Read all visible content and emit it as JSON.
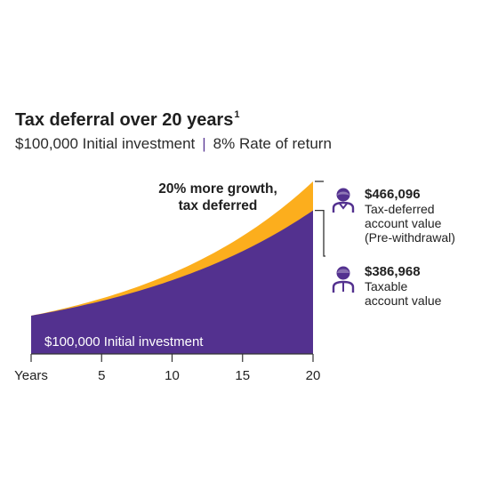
{
  "header": {
    "title": "Tax deferral over 20 years",
    "footnote_marker": "1",
    "subtitle_left": "$100,000 Initial investment",
    "subtitle_sep": "|",
    "subtitle_right": "8% Rate of return"
  },
  "chart_data": {
    "type": "area",
    "title": "Tax deferral over 20 years",
    "subtitle": "$100,000 Initial investment | 8% Rate of return",
    "xlabel": "Years",
    "x": [
      0,
      5,
      10,
      15,
      20
    ],
    "x_ticks": [
      "Years",
      "5",
      "10",
      "15",
      "20"
    ],
    "xlim": [
      0,
      20
    ],
    "ylim": [
      0,
      466096
    ],
    "series": [
      {
        "name": "Taxable account value",
        "color": "#53318f",
        "values": [
          100000,
          140255,
          196715,
          275909,
          386968
        ]
      },
      {
        "name": "Tax-deferred account value (Pre-withdrawal)",
        "color": "#fcae1d",
        "values": [
          100000,
          146933,
          215892,
          317217,
          466096
        ]
      }
    ],
    "annotations": {
      "growth_line1": "20% more growth,",
      "growth_line2": "tax deferred",
      "base_label": "$100,000 Initial investment"
    },
    "legend_placement": "right",
    "grid": false
  },
  "callouts": {
    "deferred": {
      "value": "$466,096",
      "line1": "Tax-deferred",
      "line2": "account value",
      "line3": "(Pre-withdrawal)",
      "icon": "person-icon"
    },
    "taxable": {
      "value": "$386,968",
      "line1": "Taxable",
      "line2": "account value",
      "icon": "person-icon"
    }
  },
  "colors": {
    "purple": "#53318f",
    "gold": "#fcae1d",
    "axis": "#333333"
  }
}
